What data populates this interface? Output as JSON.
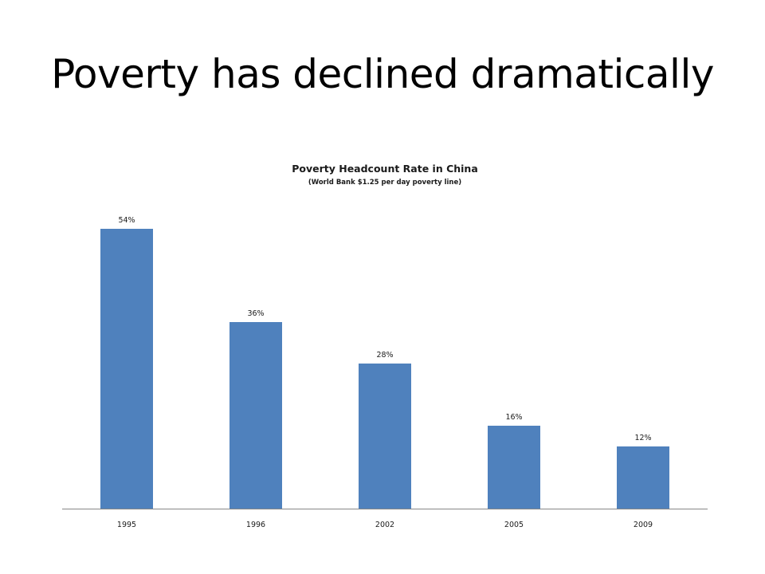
{
  "slide": {
    "title": "Poverty has declined dramatically"
  },
  "colors": {
    "bar": "#4f81bd",
    "axis": "#868686",
    "background": "#ffffff",
    "text": "#000000"
  },
  "chart_data": {
    "type": "bar",
    "title": "Poverty Headcount Rate in China",
    "subtitle": "(World Bank $1.25 per day poverty line)",
    "xlabel": "",
    "ylabel": "",
    "categories": [
      "1995",
      "1996",
      "2002",
      "2005",
      "2009"
    ],
    "values": [
      54,
      36,
      28,
      16,
      12
    ],
    "data_labels": [
      "54%",
      "36%",
      "28%",
      "16%",
      "12%"
    ],
    "ylim": [
      0,
      60
    ],
    "grid": false,
    "legend": "none"
  }
}
